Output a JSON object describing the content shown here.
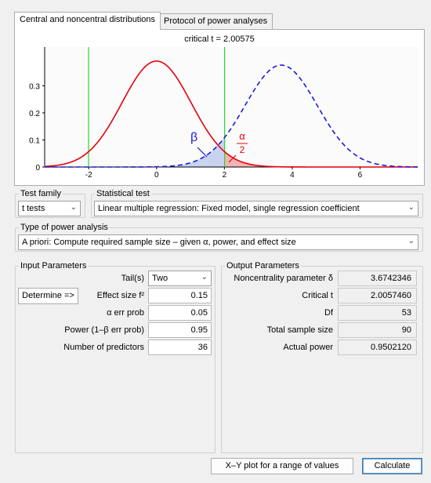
{
  "tabs": [
    {
      "label": "Central and noncentral distributions",
      "active": true
    },
    {
      "label": "Protocol of power analyses",
      "active": false
    }
  ],
  "plot": {
    "title": "critical t = 2.00575",
    "critical_t": 2.00575,
    "noncentrality": 3.6742346,
    "df": 53,
    "beta_label": "β",
    "alpha_num": "α",
    "alpha_den": "2",
    "y_ticks": [
      "0",
      "0.1",
      "0.2",
      "0.3"
    ],
    "x_ticks": [
      "-2",
      "0",
      "2",
      "4",
      "6"
    ],
    "colors": {
      "central": "#e8000a",
      "noncentral": "#1a1adf",
      "critical": "#2bd62b",
      "beta_fill": "#c8d3ef",
      "alpha_fill": "#f4b4b4"
    }
  },
  "test_family": {
    "title": "Test family",
    "value": "t tests"
  },
  "statistical_test": {
    "title": "Statistical test",
    "value": "Linear multiple regression: Fixed model, single regression coefficient"
  },
  "type_of_power_analysis": {
    "title": "Type of power analysis",
    "value": "A priori: Compute required sample size – given α, power, and effect size"
  },
  "input": {
    "title": "Input Parameters",
    "tails_label": "Tail(s)",
    "tails_value": "Two",
    "determine_button": "Determine =>",
    "effect_size_label": "Effect size f²",
    "effect_size_value": "0.15",
    "alpha_label": "α err prob",
    "alpha_value": "0.05",
    "power_label": "Power (1–β err prob)",
    "power_value": "0.95",
    "predictors_label": "Number of predictors",
    "predictors_value": "36"
  },
  "output": {
    "title": "Output Parameters",
    "rows": [
      {
        "label": "Noncentrality parameter δ",
        "value": "3.6742346"
      },
      {
        "label": "Critical t",
        "value": "2.0057460"
      },
      {
        "label": "Df",
        "value": "53"
      },
      {
        "label": "Total sample size",
        "value": "90"
      },
      {
        "label": "Actual power",
        "value": "0.9502120"
      }
    ]
  },
  "buttons": {
    "xy_plot": "X–Y plot for a range of values",
    "calculate": "Calculate"
  }
}
